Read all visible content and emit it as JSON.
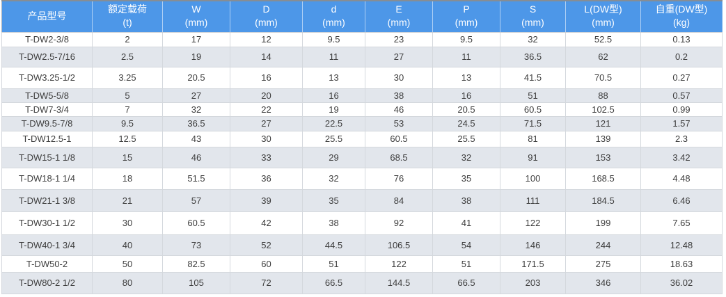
{
  "colors": {
    "header_bg": "#4D97E8",
    "header_text": "#FFFFFF",
    "row_bg": "#FFFFFF",
    "row_alt_bg": "#E2E6EC",
    "body_text": "#3D3D3D",
    "grid_line": "#D4D8DD"
  },
  "chart_data": {
    "type": "table",
    "layout": {
      "striped": true,
      "header_rows": 1,
      "column_count": 10,
      "row_count": 14
    },
    "columns": [
      {
        "key": "model",
        "line1": "产品型号",
        "line2": ""
      },
      {
        "key": "rated_load",
        "line1": "额定载荷",
        "line2": "(t)"
      },
      {
        "key": "W",
        "line1": "W",
        "line2": "(mm)"
      },
      {
        "key": "D",
        "line1": "D",
        "line2": "(mm)"
      },
      {
        "key": "d",
        "line1": "d",
        "line2": "(mm)"
      },
      {
        "key": "E",
        "line1": "E",
        "line2": "(mm)"
      },
      {
        "key": "P",
        "line1": "P",
        "line2": "(mm)"
      },
      {
        "key": "S",
        "line1": "S",
        "line2": "(mm)"
      },
      {
        "key": "L_DW",
        "line1": "L(DW型)",
        "line2": "(mm)"
      },
      {
        "key": "weight_DW",
        "line1": "自重(DW型)",
        "line2": "(kg)"
      }
    ],
    "rows": [
      [
        "T-DW2-3/8",
        "2",
        "17",
        "12",
        "9.5",
        "23",
        "9.5",
        "32",
        "52.5",
        "0.13"
      ],
      [
        "T-DW2.5-7/16",
        "2.5",
        "19",
        "14",
        "11",
        "27",
        "11",
        "36.5",
        "62",
        "0.2"
      ],
      [
        "T-DW3.25-1/2",
        "3.25",
        "20.5",
        "16",
        "13",
        "30",
        "13",
        "41.5",
        "70.5",
        "0.27"
      ],
      [
        "T-DW5-5/8",
        "5",
        "27",
        "20",
        "16",
        "38",
        "16",
        "51",
        "88",
        "0.57"
      ],
      [
        "T-DW7-3/4",
        "7",
        "32",
        "22",
        "19",
        "46",
        "20.5",
        "60.5",
        "102.5",
        "0.99"
      ],
      [
        "T-DW9.5-7/8",
        "9.5",
        "36.5",
        "27",
        "22.5",
        "53",
        "24.5",
        "71.5",
        "121",
        "1.57"
      ],
      [
        "T-DW12.5-1",
        "12.5",
        "43",
        "30",
        "25.5",
        "60.5",
        "25.5",
        "81",
        "139",
        "2.3"
      ],
      [
        "T-DW15-1 1/8",
        "15",
        "46",
        "33",
        "29",
        "68.5",
        "32",
        "91",
        "153",
        "3.42"
      ],
      [
        "T-DW18-1 1/4",
        "18",
        "51.5",
        "36",
        "32",
        "76",
        "35",
        "100",
        "168.5",
        "4.48"
      ],
      [
        "T-DW21-1 3/8",
        "21",
        "57",
        "39",
        "35",
        "84",
        "38",
        "111",
        "184.5",
        "6.46"
      ],
      [
        "T-DW30-1 1/2",
        "30",
        "60.5",
        "42",
        "38",
        "92",
        "41",
        "122",
        "199",
        "7.65"
      ],
      [
        "T-DW40-1 3/4",
        "40",
        "73",
        "52",
        "44.5",
        "106.5",
        "54",
        "146",
        "244",
        "12.48"
      ],
      [
        "T-DW50-2",
        "50",
        "82.5",
        "60",
        "51",
        "122",
        "51",
        "171.5",
        "275",
        "18.63"
      ],
      [
        "T-DW80-2 1/2",
        "80",
        "105",
        "72",
        "66.5",
        "144.5",
        "66.5",
        "203",
        "346",
        "36.02"
      ]
    ]
  }
}
